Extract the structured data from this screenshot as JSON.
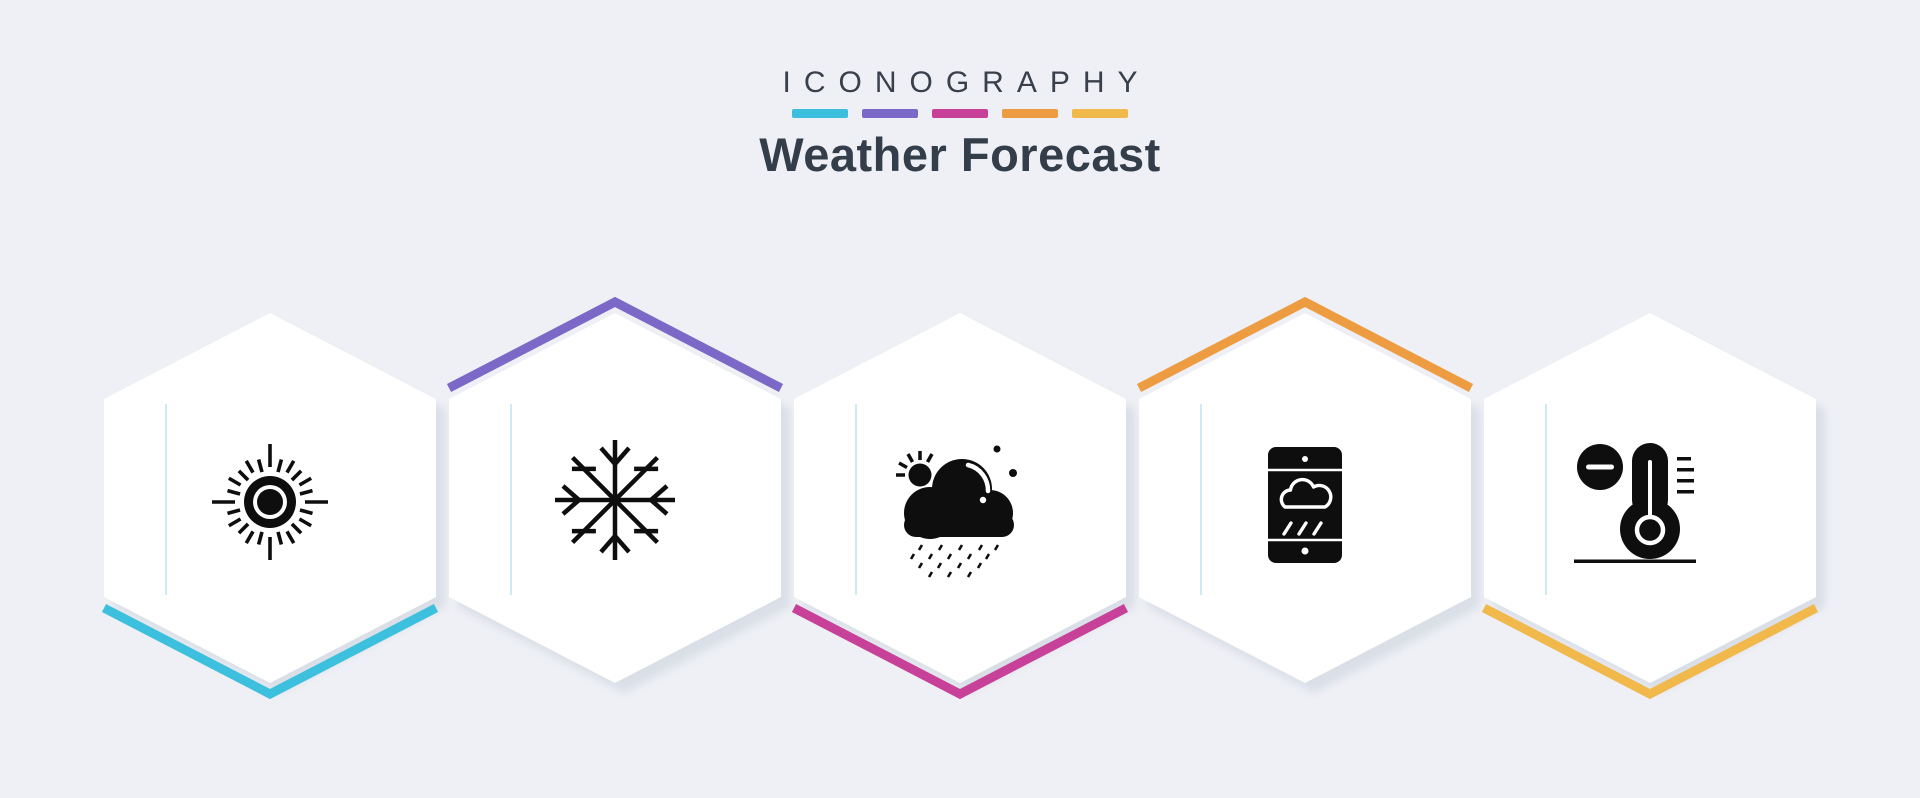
{
  "header": {
    "brand": "ICONOGRAPHY",
    "title": "Weather Forecast",
    "dash_colors": [
      "#3bbfdd",
      "#7c68c6",
      "#c64197",
      "#ee9c42",
      "#f1b84b"
    ]
  },
  "palette": {
    "background": "#eef0f5",
    "card": "#ffffff",
    "icon_ink": "#0e0e0e",
    "hairline": "#cfeaf2",
    "text_dark": "#333e4a"
  },
  "hexagons": [
    {
      "icon": "sun",
      "accent_hex": "#3cc0de",
      "accent_position": "bottom"
    },
    {
      "icon": "snowflake",
      "accent_hex": "#7c68c6",
      "accent_position": "top"
    },
    {
      "icon": "rain-cloud-sun",
      "accent_hex": "#c64197",
      "accent_position": "bottom"
    },
    {
      "icon": "mobile-weather",
      "accent_hex": "#ee9c42",
      "accent_position": "top"
    },
    {
      "icon": "thermometer-minus",
      "accent_hex": "#f1b84b",
      "accent_position": "bottom"
    }
  ]
}
